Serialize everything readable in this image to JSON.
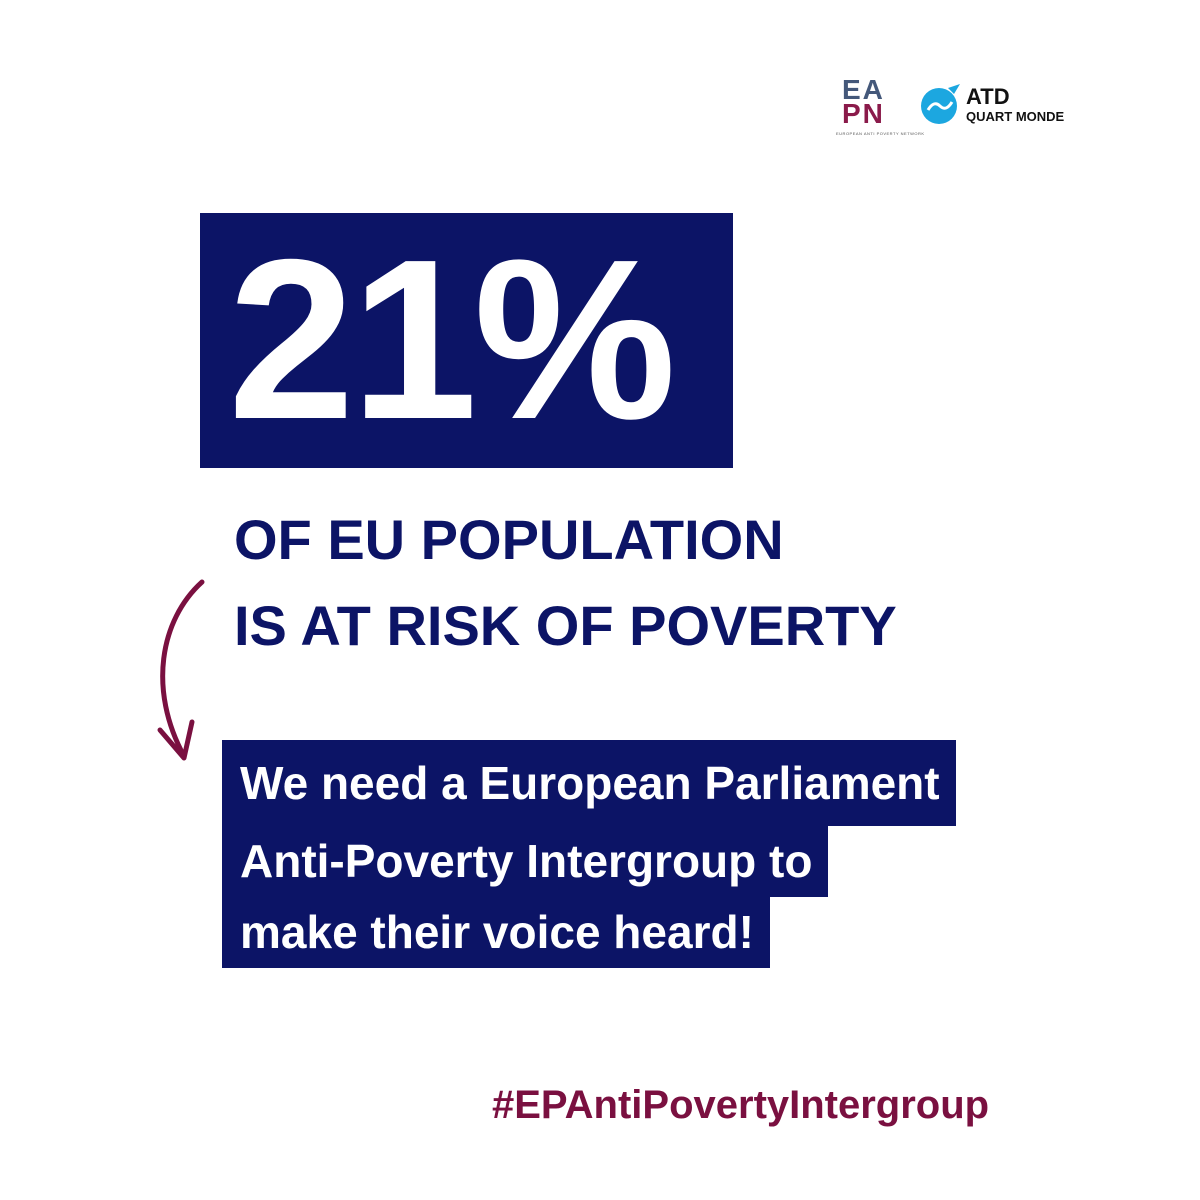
{
  "logos": {
    "eapn": {
      "top": "EA",
      "bottom": "PN",
      "caption": "EUROPEAN ANTI POVERTY NETWORK"
    },
    "atd": {
      "name": "ATD",
      "subtitle": "QUART MONDE"
    }
  },
  "headline": {
    "figure": "21%",
    "lines": [
      "OF EU POPULATION",
      "IS AT RISK OF POVERTY"
    ]
  },
  "callout": {
    "lines": [
      "We need a European Parliament",
      "Anti-Poverty Intergroup to",
      "make their voice heard!"
    ]
  },
  "hashtag": "#EPAntiPovertyIntergroup"
}
